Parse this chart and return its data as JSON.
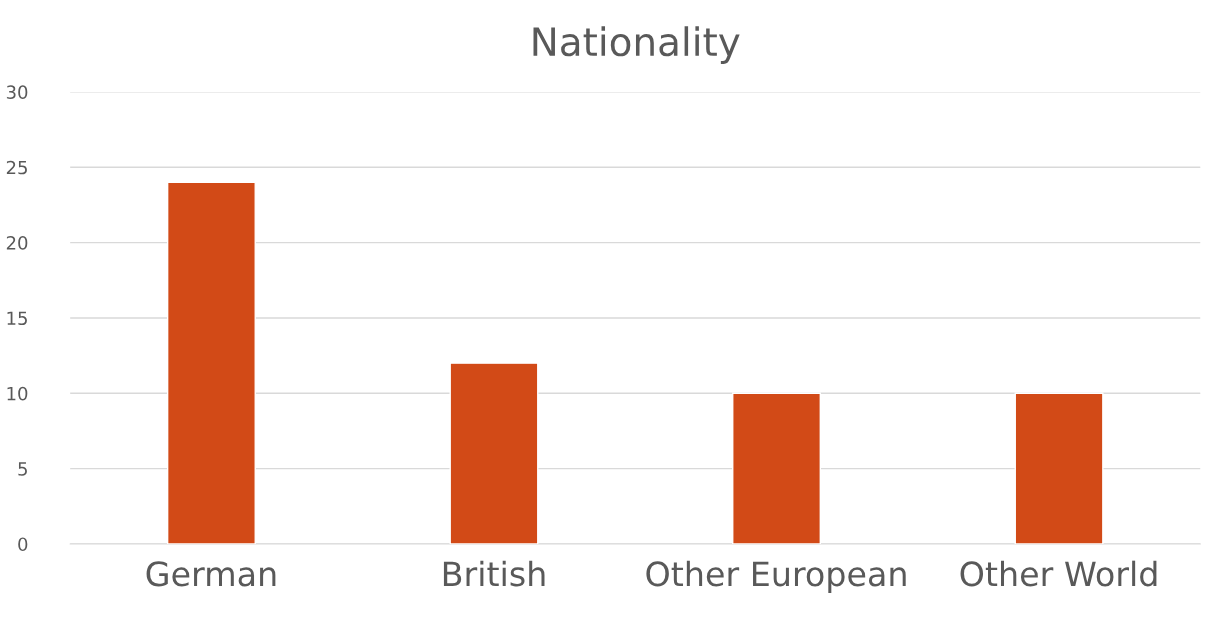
{
  "chart_data": {
    "type": "bar",
    "title": "Nationality",
    "categories": [
      "German",
      "British",
      "Other European",
      "Other World"
    ],
    "values": [
      24,
      12,
      10,
      10
    ],
    "color": "#d24a17",
    "ylim": [
      0,
      30
    ],
    "yticks": [
      0,
      5,
      10,
      15,
      20,
      25,
      30
    ],
    "grid": "y"
  }
}
